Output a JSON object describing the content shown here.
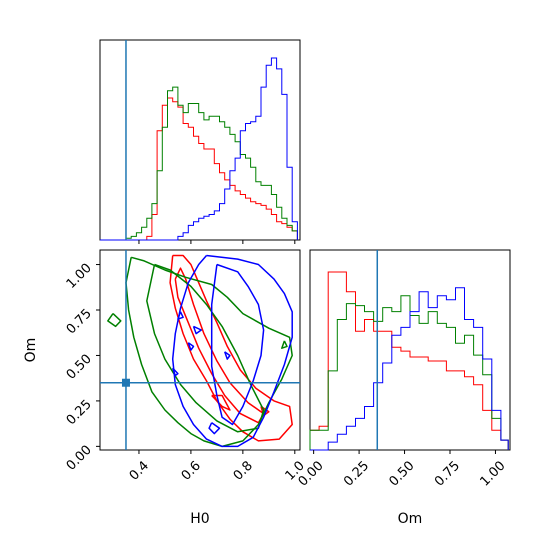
{
  "chart_data": {
    "type": "corner",
    "parameters": [
      "H0",
      "Om"
    ],
    "truth": {
      "H0": 0.35,
      "Om": 0.35
    },
    "colors": {
      "red": "#ff0000",
      "green": "#008000",
      "blue": "#0000ff",
      "truth": "#1f77b4"
    },
    "ranges": {
      "H0": [
        0.25,
        1.02
      ],
      "Om": [
        -0.02,
        1.08
      ]
    },
    "xlabels": {
      "H0": "H0",
      "Om": "Om"
    },
    "ylabels": {
      "Om": "Om"
    },
    "ticks": {
      "H0": [
        {
          "value": 0.4,
          "label": "0.4"
        },
        {
          "value": 0.6,
          "label": "0.6"
        },
        {
          "value": 0.8,
          "label": "0.8"
        },
        {
          "value": 1.0,
          "label": "1.0"
        }
      ],
      "Om": [
        {
          "value": 0.0,
          "label": "0.00"
        },
        {
          "value": 0.25,
          "label": "0.25"
        },
        {
          "value": 0.5,
          "label": "0.50"
        },
        {
          "value": 0.75,
          "label": "0.75"
        },
        {
          "value": 1.0,
          "label": "1.00"
        }
      ]
    },
    "histograms": {
      "H0": {
        "edges": [
          0.25,
          0.27,
          0.29,
          0.31,
          0.33,
          0.35,
          0.37,
          0.39,
          0.41,
          0.43,
          0.45,
          0.47,
          0.49,
          0.51,
          0.53,
          0.55,
          0.57,
          0.59,
          0.61,
          0.63,
          0.65,
          0.67,
          0.69,
          0.71,
          0.73,
          0.75,
          0.77,
          0.79,
          0.81,
          0.83,
          0.85,
          0.87,
          0.89,
          0.91,
          0.93,
          0.95,
          0.97,
          0.99,
          1.01
        ],
        "series": [
          {
            "color": "red",
            "values": [
              0,
              0,
              0,
              0,
              0,
              0,
              0,
              0,
              0,
              2,
              14,
              60,
              74,
              78,
              76,
              73,
              64,
              62,
              57,
              53,
              50,
              50,
              42,
              37,
              33,
              30,
              27,
              25,
              23,
              21,
              20,
              19,
              17,
              14,
              10,
              9,
              7,
              5
            ]
          },
          {
            "color": "green",
            "values": [
              0,
              0,
              0,
              0,
              0,
              1,
              2,
              4,
              7,
              12,
              20,
              38,
              62,
              82,
              84,
              74,
              70,
              75,
              75,
              70,
              66,
              68,
              68,
              65,
              62,
              58,
              54,
              47,
              45,
              40,
              32,
              30,
              30,
              25,
              18,
              12,
              8,
              5
            ]
          },
          {
            "color": "blue",
            "values": [
              0,
              0,
              0,
              0,
              0,
              0,
              0,
              0,
              0,
              0,
              0,
              0,
              0,
              0,
              0,
              2,
              4,
              8,
              10,
              12,
              13,
              14,
              16,
              20,
              28,
              38,
              45,
              60,
              64,
              65,
              68,
              84,
              96,
              100,
              94,
              80,
              40,
              10
            ]
          }
        ]
      },
      "Om": {
        "edges": [
          -0.02,
          0.03,
          0.08,
          0.13,
          0.18,
          0.23,
          0.28,
          0.33,
          0.38,
          0.43,
          0.48,
          0.53,
          0.58,
          0.63,
          0.68,
          0.73,
          0.78,
          0.83,
          0.88,
          0.93,
          0.98,
          1.03,
          1.07
        ],
        "series": [
          {
            "color": "red",
            "values": [
              10,
              12,
              90,
              90,
              80,
              60,
              66,
              60,
              60,
              52,
              50,
              47,
              47,
              45,
              45,
              40,
              40,
              37,
              33,
              20,
              10,
              5
            ]
          },
          {
            "color": "green",
            "values": [
              10,
              10,
              40,
              66,
              74,
              73,
              70,
              65,
              72,
              70,
              78,
              68,
              64,
              70,
              64,
              62,
              54,
              58,
              48,
              38,
              16,
              5
            ]
          },
          {
            "color": "blue",
            "values": [
              0,
              0,
              4,
              8,
              12,
              16,
              22,
              34,
              44,
              58,
              62,
              70,
              80,
              72,
              78,
              76,
              82,
              66,
              62,
              46,
              20,
              5
            ]
          }
        ]
      }
    },
    "contours": [
      {
        "color": "red",
        "lines": [
          [
            [
              0.53,
              1.05
            ],
            [
              0.57,
              1.05
            ],
            [
              0.6,
              1.0
            ],
            [
              0.63,
              0.9
            ],
            [
              0.66,
              0.8
            ],
            [
              0.7,
              0.68
            ],
            [
              0.74,
              0.55
            ],
            [
              0.79,
              0.42
            ],
            [
              0.85,
              0.32
            ],
            [
              0.92,
              0.25
            ],
            [
              0.98,
              0.22
            ],
            [
              0.99,
              0.12
            ],
            [
              0.94,
              0.04
            ],
            [
              0.86,
              0.03
            ],
            [
              0.8,
              0.08
            ],
            [
              0.75,
              0.15
            ],
            [
              0.7,
              0.25
            ],
            [
              0.66,
              0.36
            ],
            [
              0.61,
              0.48
            ],
            [
              0.57,
              0.62
            ],
            [
              0.54,
              0.76
            ],
            [
              0.52,
              0.9
            ],
            [
              0.53,
              1.05
            ]
          ],
          [
            [
              0.54,
              0.92
            ],
            [
              0.56,
              0.98
            ],
            [
              0.58,
              0.92
            ],
            [
              0.61,
              0.78
            ],
            [
              0.65,
              0.62
            ],
            [
              0.7,
              0.47
            ],
            [
              0.75,
              0.35
            ],
            [
              0.82,
              0.24
            ],
            [
              0.88,
              0.18
            ],
            [
              0.86,
              0.13
            ],
            [
              0.79,
              0.18
            ],
            [
              0.73,
              0.28
            ],
            [
              0.68,
              0.4
            ],
            [
              0.63,
              0.54
            ],
            [
              0.59,
              0.68
            ],
            [
              0.55,
              0.82
            ],
            [
              0.54,
              0.92
            ]
          ],
          [
            [
              0.68,
              0.28
            ],
            [
              0.72,
              0.22
            ],
            [
              0.75,
              0.2
            ],
            [
              0.72,
              0.28
            ],
            [
              0.68,
              0.28
            ]
          ],
          [
            [
              0.87,
              0.22
            ],
            [
              0.9,
              0.19
            ],
            [
              0.88,
              0.17
            ],
            [
              0.87,
              0.22
            ]
          ]
        ]
      },
      {
        "color": "green",
        "lines": [
          [
            [
              0.37,
              1.04
            ],
            [
              0.42,
              1.02
            ],
            [
              0.5,
              0.97
            ],
            [
              0.58,
              0.93
            ],
            [
              0.68,
              0.89
            ],
            [
              0.74,
              0.82
            ],
            [
              0.8,
              0.73
            ],
            [
              0.9,
              0.65
            ],
            [
              0.98,
              0.6
            ],
            [
              0.99,
              0.5
            ],
            [
              0.95,
              0.37
            ],
            [
              0.9,
              0.24
            ],
            [
              0.86,
              0.12
            ],
            [
              0.8,
              0.03
            ],
            [
              0.72,
              0.0
            ],
            [
              0.65,
              0.03
            ],
            [
              0.6,
              0.07
            ],
            [
              0.55,
              0.13
            ],
            [
              0.5,
              0.2
            ],
            [
              0.45,
              0.3
            ],
            [
              0.41,
              0.45
            ],
            [
              0.38,
              0.6
            ],
            [
              0.36,
              0.75
            ],
            [
              0.35,
              0.9
            ],
            [
              0.37,
              1.04
            ]
          ],
          [
            [
              0.46,
              1.0
            ],
            [
              0.52,
              0.97
            ],
            [
              0.6,
              0.88
            ],
            [
              0.66,
              0.78
            ],
            [
              0.72,
              0.66
            ],
            [
              0.78,
              0.5
            ],
            [
              0.83,
              0.34
            ],
            [
              0.88,
              0.2
            ],
            [
              0.86,
              0.1
            ],
            [
              0.78,
              0.08
            ],
            [
              0.7,
              0.14
            ],
            [
              0.62,
              0.24
            ],
            [
              0.56,
              0.34
            ],
            [
              0.5,
              0.48
            ],
            [
              0.46,
              0.62
            ],
            [
              0.43,
              0.8
            ],
            [
              0.46,
              1.0
            ]
          ],
          [
            [
              0.3,
              0.73
            ],
            [
              0.33,
              0.69
            ],
            [
              0.31,
              0.66
            ],
            [
              0.28,
              0.69
            ],
            [
              0.3,
              0.73
            ]
          ],
          [
            [
              0.96,
              0.58
            ],
            [
              0.97,
              0.55
            ],
            [
              0.95,
              0.54
            ],
            [
              0.96,
              0.58
            ]
          ]
        ]
      },
      {
        "color": "blue",
        "lines": [
          [
            [
              0.66,
              1.05
            ],
            [
              0.78,
              1.03
            ],
            [
              0.86,
              1.0
            ],
            [
              0.92,
              0.92
            ],
            [
              0.96,
              0.84
            ],
            [
              0.99,
              0.74
            ],
            [
              0.99,
              0.6
            ],
            [
              0.96,
              0.45
            ],
            [
              0.92,
              0.3
            ],
            [
              0.88,
              0.16
            ],
            [
              0.84,
              0.05
            ],
            [
              0.78,
              0.0
            ],
            [
              0.72,
              0.0
            ],
            [
              0.66,
              0.04
            ],
            [
              0.61,
              0.12
            ],
            [
              0.57,
              0.22
            ],
            [
              0.54,
              0.34
            ],
            [
              0.53,
              0.48
            ],
            [
              0.54,
              0.62
            ],
            [
              0.56,
              0.76
            ],
            [
              0.59,
              0.9
            ],
            [
              0.63,
              1.0
            ],
            [
              0.66,
              1.05
            ]
          ],
          [
            [
              0.7,
              1.0
            ],
            [
              0.78,
              0.96
            ],
            [
              0.82,
              0.88
            ],
            [
              0.86,
              0.78
            ],
            [
              0.88,
              0.64
            ],
            [
              0.87,
              0.5
            ],
            [
              0.84,
              0.36
            ],
            [
              0.8,
              0.22
            ],
            [
              0.76,
              0.12
            ],
            [
              0.72,
              0.16
            ],
            [
              0.7,
              0.28
            ],
            [
              0.68,
              0.44
            ],
            [
              0.68,
              0.6
            ],
            [
              0.68,
              0.78
            ],
            [
              0.7,
              1.0
            ]
          ],
          [
            [
              0.61,
              0.66
            ],
            [
              0.64,
              0.64
            ],
            [
              0.62,
              0.62
            ],
            [
              0.61,
              0.66
            ]
          ],
          [
            [
              0.56,
              0.74
            ],
            [
              0.57,
              0.71
            ],
            [
              0.55,
              0.7
            ],
            [
              0.56,
              0.74
            ]
          ],
          [
            [
              0.53,
              0.43
            ],
            [
              0.55,
              0.4
            ],
            [
              0.54,
              0.39
            ],
            [
              0.53,
              0.43
            ]
          ],
          [
            [
              0.68,
              0.13
            ],
            [
              0.71,
              0.1
            ],
            [
              0.69,
              0.07
            ],
            [
              0.67,
              0.1
            ],
            [
              0.68,
              0.13
            ]
          ],
          [
            [
              0.73,
              0.52
            ],
            [
              0.75,
              0.5
            ],
            [
              0.74,
              0.48
            ],
            [
              0.73,
              0.52
            ]
          ],
          [
            [
              0.59,
              0.57
            ],
            [
              0.61,
              0.55
            ],
            [
              0.6,
              0.53
            ],
            [
              0.59,
              0.57
            ]
          ]
        ]
      }
    ]
  }
}
